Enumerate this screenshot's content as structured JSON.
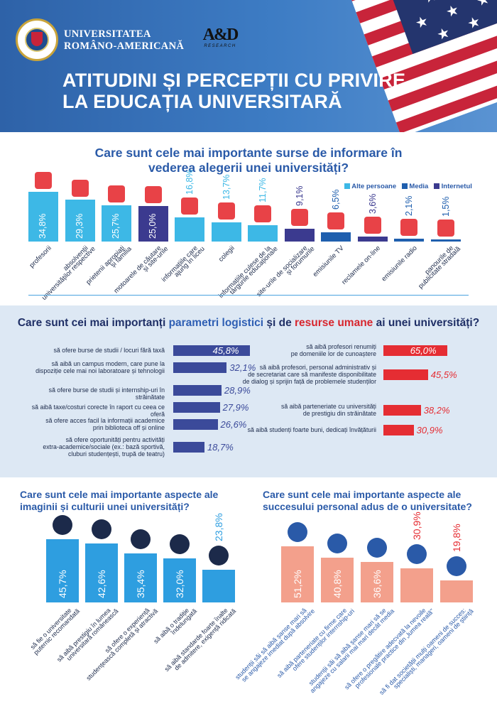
{
  "header": {
    "university_line1": "UNIVERSITATEA",
    "university_line2": "ROMÂNO-AMERICANĂ",
    "partner_logo": "A&D",
    "partner_sub": "RESEARCH",
    "title_line1": "ATITUDINI ȘI PERCEPȚII CU PRIVIRE",
    "title_line2": "LA EDUCAȚIA UNIVERSITARĂ"
  },
  "colors": {
    "alte": "#3db8e6",
    "media": "#1f5fae",
    "internet": "#3b3a8f",
    "red": "#e52d33",
    "pink": "#f3a08c",
    "logistic": "#3b4a9a"
  },
  "chart_data": [
    {
      "type": "bar",
      "title_line1": "Care sunt cele mai importante surse de informare în",
      "title_line2": "vederea alegerii unei universități?",
      "legend": [
        "Alte persoane",
        "Media",
        "Internetul"
      ],
      "categories": [
        "profesorii",
        "absolvenții universităților respective",
        "prietenii apropiați și familia",
        "motoarele de căutare și site-urile",
        "informațiile care ajung în liceu",
        "colegii",
        "informațiile culese de la târgurile educaționale",
        "site-urile de socializare și forumurile",
        "emisiunile TV",
        "reclamele on-line",
        "emisiunile radio",
        "panourile de publicitate stradală"
      ],
      "label_lines": [
        [
          "profesorii"
        ],
        [
          "absolvenții",
          "universităților respective"
        ],
        [
          "prietenii apropiați",
          "și familia"
        ],
        [
          "motoarele de căutare",
          "și site-urile"
        ],
        [
          "informațiile care",
          "ajung în liceu"
        ],
        [
          "colegii"
        ],
        [
          "informațiile culese de la",
          "târgurile educaționale"
        ],
        [
          "site-urile de socializare",
          "și forumurile"
        ],
        [
          "emisiunile TV"
        ],
        [
          "reclamele on-line"
        ],
        [
          "emisiunile radio"
        ],
        [
          "panourile de",
          "publicitate stradală"
        ]
      ],
      "values": [
        34.8,
        29.3,
        25.7,
        25.0,
        16.8,
        13.7,
        11.7,
        9.1,
        6.5,
        3.6,
        2.1,
        1.5
      ],
      "value_labels": [
        "34,8%",
        "29,3%",
        "25,7%",
        "25,0%",
        "16,8%",
        "13,7%",
        "11,7%",
        "9,1%",
        "6,5%",
        "3,6%",
        "2,1%",
        "1,5%"
      ],
      "groups": [
        "alte",
        "alte",
        "alte",
        "internet",
        "alte",
        "alte",
        "alte",
        "internet",
        "media",
        "internet",
        "media",
        "media"
      ],
      "icons": [
        "teacher-icon",
        "graduate-icon",
        "family-icon",
        "laptop-icon",
        "brochure-icon",
        "colleagues-icon",
        "fair-stand-icon",
        "social-network-icon",
        "tv-news-icon",
        "online-ad-icon",
        "radio-icon",
        "billboard-icon"
      ],
      "ylim": [
        0,
        40
      ]
    },
    {
      "type": "bar",
      "title_prefix": "Care sunt cei mai importanți ",
      "title_hl1": "parametri logistici",
      "title_mid": " și de ",
      "title_hl2": "resurse umane",
      "title_suffix": " ai unei universități?",
      "left": {
        "labels": [
          [
            "să ofere burse de studii / locuri fără taxă"
          ],
          [
            "să aibă un campus modern, care pune la",
            "dispoziție cele mai noi laboratoare și tehnologii"
          ],
          [
            "să ofere burse de studii și internship-uri în străinătate"
          ],
          [
            "să aibă taxe/costuri corecte în raport cu ceea ce oferă"
          ],
          [
            "să ofere acces facil la informații academice",
            "prin biblioteca off și online"
          ],
          [
            "să ofere oportunități pentru activități",
            "extra-academice/sociale (ex.: bază sportivă,",
            "cluburi studențești, trupă de teatru)"
          ]
        ],
        "values": [
          45.8,
          32.1,
          28.9,
          27.9,
          26.6,
          18.7
        ],
        "value_labels": [
          "45,8%",
          "32,1%",
          "28,9%",
          "27,9%",
          "26,6%",
          "18,7%"
        ]
      },
      "right": {
        "labels": [
          [
            "să aibă profesori renumiți",
            "pe domeniile lor de cunoaștere"
          ],
          [
            "să aibă profesori, personal administrativ și",
            "de secretariat care să manifeste disponibilitate",
            "de dialog și sprijin față de problemele studenților"
          ],
          [
            "să aibă parteneriate cu universități",
            "de prestigiu din străinătate"
          ],
          [
            "să aibă studenți foarte buni, dedicați învățăturii"
          ]
        ],
        "values": [
          65.0,
          45.5,
          38.2,
          30.9
        ],
        "value_labels": [
          "65,0%",
          "45,5%",
          "38,2%",
          "30,9%"
        ]
      }
    },
    {
      "type": "bar",
      "title_line1": "Care sunt cele mai importante aspecte ale",
      "title_line2": "imaginii și culturii unei universități?",
      "label_lines": [
        [
          "să fie o universitate",
          "puternic recomandată"
        ],
        [
          "să aibă prestigiu în lumea",
          "universitară românească"
        ],
        [
          "să ofere o experiență",
          "studențească completă și atractivă"
        ],
        [
          "să aibă o tradiție",
          "îndelungată"
        ],
        [
          "să aibă standarde foarte înalte",
          "de admitere, exigență ridicată"
        ]
      ],
      "values": [
        45.7,
        42.6,
        35.4,
        32.0,
        23.8
      ],
      "value_labels": [
        "45,7%",
        "42,6%",
        "35,4%",
        "32,0%",
        "23,8%"
      ],
      "icons": [
        "star-badge-icon",
        "romania-map-icon",
        "audience-icon",
        "tree-icon",
        "mountain-flag-icon"
      ]
    },
    {
      "type": "bar",
      "title_line1": "Care sunt cele mai importante aspecte ale",
      "title_line2": "succesului personal adus de o universitate?",
      "label_lines": [
        [
          "studenții săi să aibă șanse mari să",
          "se angajeze imediat după absolvire"
        ],
        [
          "să aibă parteneriate cu firme care",
          "ofere studenților internship-uri"
        ],
        [
          "studenții săi să aibă șanse mari să se",
          "angajeze cu salarii mai mari decât media"
        ],
        [
          "să ofere o pregătire adecvată la nevoile",
          "profesionale practice din „lumea reală\""
        ],
        [
          "să fi dat societății mulți oameni de succes:",
          "specialiști, manageri, oameni de știință"
        ]
      ],
      "values": [
        51.2,
        40.8,
        36.6,
        30.9,
        19.8
      ],
      "value_labels": [
        "51,2%",
        "40,8%",
        "36,6%",
        "30,9%",
        "19,8%"
      ],
      "icons": [
        "running-briefcase-icon",
        "handshake-icon",
        "money-bag-icon",
        "target-icon",
        "org-chart-icon"
      ]
    }
  ]
}
